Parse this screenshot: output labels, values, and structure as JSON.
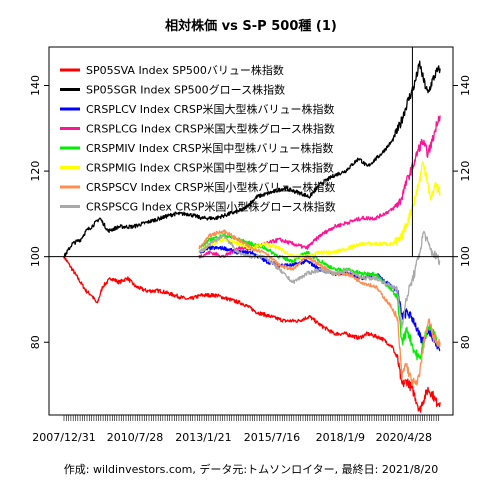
{
  "chart_data": {
    "type": "line",
    "title": "相対株価 vs S-P 500種 (1)",
    "footer": "作成: wildinvestors.com, データ元:トムソンロイター, 最終日: 2021/8/20",
    "x_ticks": [
      "2007/12/31",
      "2010/7/28",
      "2013/1/21",
      "2015/7/16",
      "2018/1/9",
      "2020/4/28"
    ],
    "x_range": [
      "2007/12/31",
      "2021/8/20"
    ],
    "y_ticks": [
      80,
      100,
      120,
      140
    ],
    "ylim": [
      63,
      149
    ],
    "reference_line": 100,
    "legend_position": "top-left",
    "series": [
      {
        "name": "SP05SVA Index SP500バリュー株指数",
        "color": "#ff0000",
        "start_year": 2008.0,
        "points": [
          [
            2008.0,
            100
          ],
          [
            2008.3,
            97
          ],
          [
            2008.6,
            94
          ],
          [
            2008.8,
            92
          ],
          [
            2009.0,
            91
          ],
          [
            2009.2,
            89
          ],
          [
            2009.4,
            93
          ],
          [
            2009.7,
            95
          ],
          [
            2010.0,
            94
          ],
          [
            2010.3,
            95
          ],
          [
            2010.6,
            93
          ],
          [
            2011.0,
            92
          ],
          [
            2011.5,
            92
          ],
          [
            2012.0,
            91
          ],
          [
            2012.5,
            90
          ],
          [
            2013.0,
            91
          ],
          [
            2013.5,
            91
          ],
          [
            2014.0,
            90
          ],
          [
            2014.5,
            89
          ],
          [
            2015.0,
            87
          ],
          [
            2015.5,
            86
          ],
          [
            2016.0,
            85
          ],
          [
            2016.5,
            85
          ],
          [
            2016.9,
            86
          ],
          [
            2017.3,
            84
          ],
          [
            2017.8,
            82
          ],
          [
            2018.2,
            82
          ],
          [
            2018.7,
            81
          ],
          [
            2019.0,
            82
          ],
          [
            2019.5,
            81
          ],
          [
            2019.9,
            79
          ],
          [
            2020.1,
            76
          ],
          [
            2020.25,
            70
          ],
          [
            2020.45,
            71
          ],
          [
            2020.7,
            68
          ],
          [
            2020.9,
            64
          ],
          [
            2021.0,
            66
          ],
          [
            2021.2,
            69
          ],
          [
            2021.35,
            68
          ],
          [
            2021.5,
            66
          ],
          [
            2021.64,
            66
          ]
        ]
      },
      {
        "name": "SP05SGR Index SP500グロース株指数",
        "color": "#000000",
        "start_year": 2008.0,
        "points": [
          [
            2008.0,
            100
          ],
          [
            2008.3,
            103
          ],
          [
            2008.6,
            104
          ],
          [
            2008.8,
            106
          ],
          [
            2009.0,
            107
          ],
          [
            2009.3,
            109
          ],
          [
            2009.6,
            106
          ],
          [
            2010.0,
            107
          ],
          [
            2010.5,
            107
          ],
          [
            2011.0,
            108
          ],
          [
            2011.5,
            109
          ],
          [
            2012.0,
            110
          ],
          [
            2012.5,
            110
          ],
          [
            2013.0,
            109
          ],
          [
            2013.5,
            109
          ],
          [
            2014.0,
            110
          ],
          [
            2014.5,
            111
          ],
          [
            2015.0,
            114
          ],
          [
            2015.5,
            115
          ],
          [
            2016.0,
            116
          ],
          [
            2016.5,
            115
          ],
          [
            2016.9,
            114
          ],
          [
            2017.3,
            117
          ],
          [
            2017.8,
            119
          ],
          [
            2018.2,
            120
          ],
          [
            2018.7,
            123
          ],
          [
            2019.0,
            121
          ],
          [
            2019.5,
            124
          ],
          [
            2019.9,
            127
          ],
          [
            2020.2,
            131
          ],
          [
            2020.45,
            136
          ],
          [
            2020.7,
            140
          ],
          [
            2020.9,
            145
          ],
          [
            2021.05,
            141
          ],
          [
            2021.2,
            138
          ],
          [
            2021.35,
            141
          ],
          [
            2021.5,
            143
          ],
          [
            2021.64,
            144
          ]
        ]
      },
      {
        "name": "CRSPLCV Index CRSP米国大型株バリュー株指数",
        "color": "#0000ff",
        "start_year": 2012.9,
        "points": [
          [
            2012.9,
            101
          ],
          [
            2013.3,
            102
          ],
          [
            2013.8,
            102
          ],
          [
            2014.3,
            101
          ],
          [
            2014.8,
            101
          ],
          [
            2015.3,
            99
          ],
          [
            2015.8,
            98
          ],
          [
            2016.3,
            98
          ],
          [
            2016.8,
            99
          ],
          [
            2017.3,
            97
          ],
          [
            2017.8,
            96
          ],
          [
            2018.3,
            96
          ],
          [
            2018.8,
            95
          ],
          [
            2019.3,
            96
          ],
          [
            2019.9,
            93
          ],
          [
            2020.1,
            92
          ],
          [
            2020.25,
            86
          ],
          [
            2020.45,
            87
          ],
          [
            2020.7,
            85
          ],
          [
            2020.85,
            82
          ],
          [
            2021.0,
            80
          ],
          [
            2021.2,
            83
          ],
          [
            2021.4,
            81
          ],
          [
            2021.55,
            79
          ],
          [
            2021.64,
            78
          ]
        ]
      },
      {
        "name": "CRSPLCG Index CRSP米国大型株グロース株指数",
        "color": "#ff1493",
        "start_year": 2012.9,
        "points": [
          [
            2012.9,
            100
          ],
          [
            2013.3,
            101
          ],
          [
            2013.8,
            100
          ],
          [
            2014.3,
            102
          ],
          [
            2014.8,
            102
          ],
          [
            2015.3,
            103
          ],
          [
            2015.8,
            104
          ],
          [
            2016.3,
            103
          ],
          [
            2016.8,
            102
          ],
          [
            2017.3,
            105
          ],
          [
            2017.8,
            107
          ],
          [
            2018.3,
            108
          ],
          [
            2018.8,
            109
          ],
          [
            2019.3,
            109
          ],
          [
            2019.9,
            111
          ],
          [
            2020.2,
            113
          ],
          [
            2020.45,
            118
          ],
          [
            2020.7,
            122
          ],
          [
            2020.85,
            125
          ],
          [
            2021.0,
            127
          ],
          [
            2021.2,
            124
          ],
          [
            2021.4,
            128
          ],
          [
            2021.55,
            132
          ],
          [
            2021.64,
            133
          ]
        ]
      },
      {
        "name": "CRSPMIV Index CRSP米国中型株バリュー株指数",
        "color": "#00ee00",
        "start_year": 2012.9,
        "points": [
          [
            2012.9,
            102
          ],
          [
            2013.3,
            104
          ],
          [
            2013.8,
            105
          ],
          [
            2014.3,
            104
          ],
          [
            2014.8,
            103
          ],
          [
            2015.3,
            102
          ],
          [
            2015.8,
            100
          ],
          [
            2016.3,
            99
          ],
          [
            2016.8,
            101
          ],
          [
            2017.3,
            99
          ],
          [
            2017.8,
            97
          ],
          [
            2018.3,
            97
          ],
          [
            2018.8,
            96
          ],
          [
            2019.3,
            96
          ],
          [
            2019.9,
            92
          ],
          [
            2020.1,
            90
          ],
          [
            2020.25,
            80
          ],
          [
            2020.45,
            83
          ],
          [
            2020.7,
            78
          ],
          [
            2020.9,
            76
          ],
          [
            2021.0,
            79
          ],
          [
            2021.2,
            84
          ],
          [
            2021.4,
            82
          ],
          [
            2021.55,
            80
          ],
          [
            2021.64,
            79
          ]
        ]
      },
      {
        "name": "CRSPMIG Index CRSP米国中型株グロース株指数",
        "color": "#ffff00",
        "start_year": 2012.9,
        "points": [
          [
            2012.9,
            101
          ],
          [
            2013.3,
            103
          ],
          [
            2013.8,
            104
          ],
          [
            2014.3,
            103
          ],
          [
            2014.8,
            102
          ],
          [
            2015.3,
            103
          ],
          [
            2015.8,
            102
          ],
          [
            2016.3,
            100
          ],
          [
            2016.8,
            100
          ],
          [
            2017.3,
            101
          ],
          [
            2017.8,
            101
          ],
          [
            2018.3,
            102
          ],
          [
            2018.8,
            103
          ],
          [
            2019.3,
            103
          ],
          [
            2019.9,
            103
          ],
          [
            2020.2,
            104
          ],
          [
            2020.45,
            108
          ],
          [
            2020.7,
            113
          ],
          [
            2020.9,
            118
          ],
          [
            2021.0,
            122
          ],
          [
            2021.15,
            119
          ],
          [
            2021.3,
            113
          ],
          [
            2021.45,
            117
          ],
          [
            2021.64,
            115
          ]
        ]
      },
      {
        "name": "CRSPSCV Index CRSP米国小型株バリュー株指数",
        "color": "#ff8c50",
        "start_year": 2012.9,
        "points": [
          [
            2012.9,
            102
          ],
          [
            2013.3,
            105
          ],
          [
            2013.8,
            106
          ],
          [
            2014.3,
            104
          ],
          [
            2014.8,
            102
          ],
          [
            2015.3,
            101
          ],
          [
            2015.8,
            98
          ],
          [
            2016.3,
            97
          ],
          [
            2016.8,
            100
          ],
          [
            2017.3,
            98
          ],
          [
            2017.8,
            96
          ],
          [
            2018.3,
            96
          ],
          [
            2018.8,
            94
          ],
          [
            2019.3,
            93
          ],
          [
            2019.9,
            88
          ],
          [
            2020.1,
            85
          ],
          [
            2020.25,
            72
          ],
          [
            2020.4,
            75
          ],
          [
            2020.6,
            71
          ],
          [
            2020.8,
            70
          ],
          [
            2020.95,
            75
          ],
          [
            2021.1,
            82
          ],
          [
            2021.25,
            85
          ],
          [
            2021.4,
            81
          ],
          [
            2021.55,
            80
          ],
          [
            2021.64,
            80
          ]
        ]
      },
      {
        "name": "CRSPSCG Index CRSP米国小型株グロース株指数",
        "color": "#a9a9a9",
        "start_year": 2012.9,
        "points": [
          [
            2012.9,
            101
          ],
          [
            2013.3,
            103
          ],
          [
            2013.8,
            105
          ],
          [
            2014.3,
            101
          ],
          [
            2014.8,
            100
          ],
          [
            2015.3,
            100
          ],
          [
            2015.8,
            97
          ],
          [
            2016.3,
            94
          ],
          [
            2016.8,
            96
          ],
          [
            2017.3,
            97
          ],
          [
            2017.8,
            96
          ],
          [
            2018.3,
            97
          ],
          [
            2018.8,
            95
          ],
          [
            2019.3,
            95
          ],
          [
            2019.9,
            93
          ],
          [
            2020.1,
            92
          ],
          [
            2020.25,
            84
          ],
          [
            2020.45,
            91
          ],
          [
            2020.7,
            96
          ],
          [
            2020.9,
            101
          ],
          [
            2021.05,
            106
          ],
          [
            2021.2,
            103
          ],
          [
            2021.35,
            101
          ],
          [
            2021.5,
            100
          ],
          [
            2021.64,
            99
          ]
        ]
      }
    ]
  }
}
